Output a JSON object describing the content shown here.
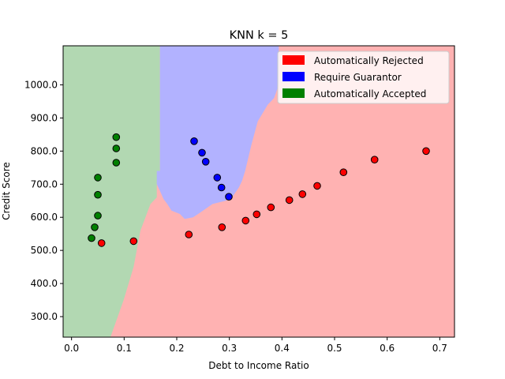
{
  "chart_data": {
    "type": "scatter",
    "title": "KNN k = 5",
    "xlabel": "Debt to Income Ratio",
    "ylabel": "Credit Score",
    "xlim": [
      -0.016,
      0.728
    ],
    "ylim": [
      238,
      1118
    ],
    "x_ticks": [
      0.0,
      0.1,
      0.2,
      0.3,
      0.4,
      0.5,
      0.6,
      0.7
    ],
    "y_ticks": [
      300,
      400,
      500,
      600,
      700,
      800,
      900,
      1000
    ],
    "x_tick_labels": [
      "0.0",
      "0.1",
      "0.2",
      "0.3",
      "0.4",
      "0.5",
      "0.6",
      "0.7"
    ],
    "y_tick_labels": [
      "300.0",
      "400.0",
      "500.0",
      "600.0",
      "700.0",
      "800.0",
      "900.0",
      "1000.0"
    ],
    "grid": false,
    "legend_position": "top-right",
    "legend": [
      {
        "label": "Automatically Rejected",
        "color": "#ff0000"
      },
      {
        "label": "Require Guarantor",
        "color": "#0000ff"
      },
      {
        "label": "Automatically Accepted",
        "color": "#008000"
      }
    ],
    "regions": [
      {
        "name": "Automatically Accepted",
        "color": "#b2d8b2",
        "boundary": [
          [
            -0.016,
            1118
          ],
          [
            0.168,
            1118
          ],
          [
            0.168,
            740
          ],
          [
            0.162,
            700
          ],
          [
            0.162,
            660
          ],
          [
            0.15,
            640
          ],
          [
            0.131,
            560
          ],
          [
            0.118,
            450
          ],
          [
            0.099,
            350
          ],
          [
            0.074,
            238
          ],
          [
            -0.016,
            238
          ]
        ]
      },
      {
        "name": "Require Guarantor",
        "color": "#b2b2ff",
        "boundary": [
          [
            0.168,
            1118
          ],
          [
            0.394,
            1118
          ],
          [
            0.394,
            1000
          ],
          [
            0.385,
            960
          ],
          [
            0.373,
            940
          ],
          [
            0.354,
            890
          ],
          [
            0.348,
            855
          ],
          [
            0.342,
            820
          ],
          [
            0.336,
            780
          ],
          [
            0.33,
            740
          ],
          [
            0.324,
            710
          ],
          [
            0.318,
            690
          ],
          [
            0.305,
            660
          ],
          [
            0.293,
            650
          ],
          [
            0.268,
            640
          ],
          [
            0.25,
            620
          ],
          [
            0.231,
            600
          ],
          [
            0.215,
            595
          ],
          [
            0.206,
            610
          ],
          [
            0.19,
            620
          ],
          [
            0.182,
            640
          ],
          [
            0.175,
            655
          ],
          [
            0.168,
            680
          ],
          [
            0.162,
            700
          ],
          [
            0.162,
            740
          ],
          [
            0.168,
            740
          ]
        ]
      }
    ],
    "background_region": {
      "name": "Automatically Rejected",
      "color": "#ffb2b2"
    },
    "series": [
      {
        "name": "Automatically Rejected",
        "color": "#ff0000",
        "points": [
          [
            0.057,
            522
          ],
          [
            0.118,
            528
          ],
          [
            0.223,
            548
          ],
          [
            0.286,
            570
          ],
          [
            0.331,
            590
          ],
          [
            0.352,
            609
          ],
          [
            0.379,
            630
          ],
          [
            0.414,
            652
          ],
          [
            0.439,
            670
          ],
          [
            0.467,
            695
          ],
          [
            0.517,
            736
          ],
          [
            0.576,
            774
          ],
          [
            0.674,
            800
          ]
        ]
      },
      {
        "name": "Require Guarantor",
        "color": "#0000ff",
        "points": [
          [
            0.233,
            830
          ],
          [
            0.248,
            795
          ],
          [
            0.255,
            768
          ],
          [
            0.277,
            720
          ],
          [
            0.285,
            690
          ],
          [
            0.299,
            662
          ]
        ]
      },
      {
        "name": "Automatically Accepted",
        "color": "#008000",
        "points": [
          [
            0.038,
            537
          ],
          [
            0.044,
            570
          ],
          [
            0.05,
            605
          ],
          [
            0.05,
            668
          ],
          [
            0.05,
            720
          ],
          [
            0.085,
            765
          ],
          [
            0.085,
            808
          ],
          [
            0.085,
            842
          ]
        ]
      }
    ]
  }
}
